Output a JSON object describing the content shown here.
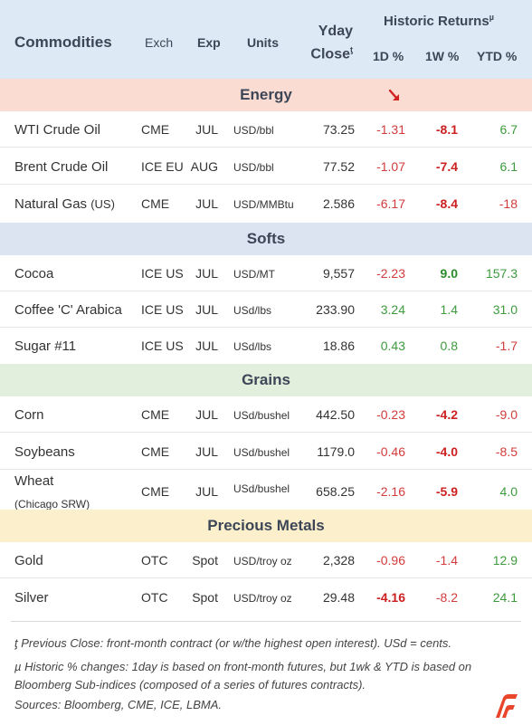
{
  "header": {
    "commodities": "Commodities",
    "exch": "Exch",
    "exp": "Exp",
    "units": "Units",
    "yday": "Yday",
    "close": "Close",
    "close_mark": "ƫ",
    "historic": "Historic Returns",
    "historic_mark": "µ",
    "d1": "1D %",
    "w1": "1W %",
    "ytd": "YTD %"
  },
  "sections": {
    "energy": "Energy",
    "softs": "Softs",
    "grains": "Grains",
    "metals": "Precious Metals"
  },
  "rows": [
    {
      "name": "WTI Crude Oil",
      "exch": "CME",
      "exp": "JUL",
      "units": "USD/bbl",
      "close": "73.25",
      "d1": "-1.31",
      "w1": "-8.1",
      "ytd": "6.7"
    },
    {
      "name": "Brent Crude Oil",
      "exch": "ICE EU",
      "exp": "AUG",
      "units": "USD/bbl",
      "close": "77.52",
      "d1": "-1.07",
      "w1": "-7.4",
      "ytd": "6.1"
    },
    {
      "name": "Natural Gas",
      "name_suffix": "(US)",
      "exch": "CME",
      "exp": "JUL",
      "units": "USD/MMBtu",
      "close": "2.586",
      "d1": "-6.17",
      "w1": "-8.4",
      "ytd": "-18"
    },
    {
      "name": "Cocoa",
      "exch": "ICE US",
      "exp": "JUL",
      "units": "USD/MT",
      "close": "9,557",
      "d1": "-2.23",
      "w1": "9.0",
      "ytd": "157.3"
    },
    {
      "name": "Coffee 'C' Arabica",
      "exch": "ICE US",
      "exp": "JUL",
      "units": "USd/lbs",
      "close": "233.90",
      "d1": "3.24",
      "w1": "1.4",
      "ytd": "31.0"
    },
    {
      "name": "Sugar #11",
      "exch": "ICE US",
      "exp": "JUL",
      "units": "USd/lbs",
      "close": "18.86",
      "d1": "0.43",
      "w1": "0.8",
      "ytd": "-1.7"
    },
    {
      "name": "Corn",
      "exch": "CME",
      "exp": "JUL",
      "units": "USd/bushel",
      "close": "442.50",
      "d1": "-0.23",
      "w1": "-4.2",
      "ytd": "-9.0"
    },
    {
      "name": "Soybeans",
      "exch": "CME",
      "exp": "JUL",
      "units": "USd/bushel",
      "close": "1179.0",
      "d1": "-0.46",
      "w1": "-4.0",
      "ytd": "-8.5"
    },
    {
      "name": "Wheat",
      "name_sub": "(Chicago SRW)",
      "exch": "CME",
      "exp": "JUL",
      "units": "USd/bushel",
      "close": "658.25",
      "d1": "-2.16",
      "w1": "-5.9",
      "ytd": "4.0"
    },
    {
      "name": "Gold",
      "exch": "OTC",
      "exp": "Spot",
      "units": "USD/troy oz",
      "close": "2,328",
      "d1": "-0.96",
      "w1": "-1.4",
      "ytd": "12.9"
    },
    {
      "name": "Silver",
      "exch": "OTC",
      "exp": "Spot",
      "units": "USD/troy oz",
      "close": "29.48",
      "d1": "-4.16",
      "w1": "-8.2",
      "ytd": "24.1"
    }
  ],
  "footnotes": {
    "f1": "ƫ Previous Close: front-month contract (or w/the highest open interest). USd = cents.",
    "f2": "µ Historic % changes: 1day is based on front-month futures, but 1wk & YTD is based on Bloomberg Sub-indices (composed of a series of futures contracts).",
    "f3": "Sources: Bloomberg, CME, ICE, LBMA."
  },
  "colors": {
    "negative": "#d33c3c",
    "positive": "#3e9a3e",
    "header_bg": "#dde9f4",
    "energy_bg": "#fbdcd3",
    "softs_bg": "#dde4f1",
    "grains_bg": "#e2efdc",
    "metals_bg": "#fcefcc"
  }
}
